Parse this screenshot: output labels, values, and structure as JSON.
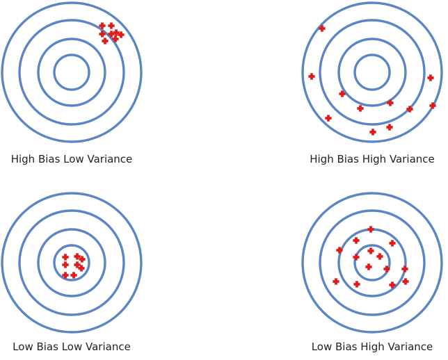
{
  "colors": {
    "ring": "#5b86c4",
    "marker": "#e01b1b",
    "caption": "#222222",
    "background": "#ffffff"
  },
  "marker_shape": "plus-cross",
  "panels": [
    {
      "id": "high-bias-low-variance",
      "caption": "High Bias Low Variance",
      "rings": 4,
      "markers": [
        [
          0.44,
          -0.67
        ],
        [
          0.57,
          -0.67
        ],
        [
          0.44,
          -0.55
        ],
        [
          0.57,
          -0.55
        ],
        [
          0.64,
          -0.57
        ],
        [
          0.71,
          -0.54
        ],
        [
          0.48,
          -0.45
        ],
        [
          0.63,
          -0.48
        ]
      ]
    },
    {
      "id": "high-bias-high-variance",
      "caption": "High Bias High Variance",
      "rings": 4,
      "markers": [
        [
          -0.72,
          -0.63
        ],
        [
          -0.87,
          0.06
        ],
        [
          -0.43,
          0.31
        ],
        [
          -0.63,
          0.66
        ],
        [
          -0.17,
          0.52
        ],
        [
          0.26,
          0.44
        ],
        [
          0.54,
          0.53
        ],
        [
          0.87,
          0.48
        ],
        [
          0.84,
          0.08
        ],
        [
          0.25,
          0.79
        ],
        [
          0.01,
          0.86
        ]
      ]
    },
    {
      "id": "low-bias-low-variance",
      "caption": "Low Bias Low Variance",
      "rings": 4,
      "markers": [
        [
          -0.09,
          -0.08
        ],
        [
          0.08,
          -0.09
        ],
        [
          -0.09,
          0.03
        ],
        [
          0.08,
          0.03
        ],
        [
          0.15,
          -0.05
        ],
        [
          0.14,
          0.08
        ],
        [
          -0.09,
          0.18
        ],
        [
          0.03,
          0.18
        ]
      ]
    },
    {
      "id": "low-bias-high-variance",
      "caption": "Low Bias High Variance",
      "rings": 4,
      "markers": [
        [
          -0.02,
          -0.48
        ],
        [
          -0.23,
          -0.32
        ],
        [
          0.29,
          -0.28
        ],
        [
          -0.47,
          -0.18
        ],
        [
          -0.02,
          -0.17
        ],
        [
          0.11,
          -0.09
        ],
        [
          -0.23,
          -0.08
        ],
        [
          0.47,
          0.09
        ],
        [
          -0.05,
          0.06
        ],
        [
          0.21,
          0.09
        ],
        [
          -0.52,
          0.27
        ],
        [
          -0.22,
          0.31
        ],
        [
          0.29,
          0.32
        ],
        [
          0.48,
          0.27
        ]
      ]
    }
  ]
}
